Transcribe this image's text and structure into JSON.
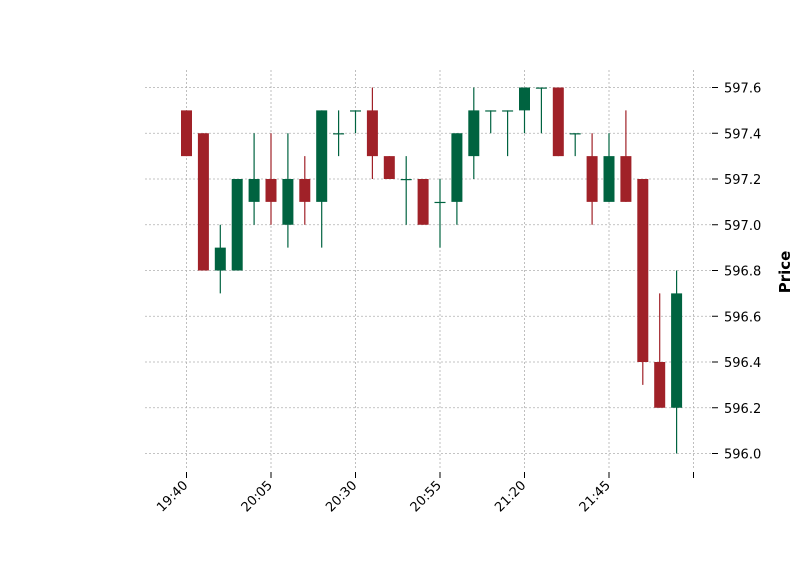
{
  "chart_data": {
    "type": "candlestick",
    "title": "",
    "xlabel": "",
    "ylabel": "Price",
    "ylim": [
      595.93,
      597.68
    ],
    "yticks": [
      596.0,
      596.2,
      596.4,
      596.6,
      596.8,
      597.0,
      597.2,
      597.4,
      597.6
    ],
    "ytick_labels": [
      "596.0",
      "596.2",
      "596.4",
      "596.6",
      "596.8",
      "597.0",
      "597.2",
      "597.4",
      "597.6"
    ],
    "xtick_index": [
      0,
      5,
      10,
      15,
      20,
      25,
      30
    ],
    "xtick_labels": [
      "19:40",
      "20:05",
      "20:30",
      "20:55",
      "21:20",
      "21:45",
      ""
    ],
    "grid": true,
    "up_color": "#006340",
    "down_color": "#a02128",
    "grid_color": "#b0b0b0",
    "candles": [
      {
        "time": "19:40",
        "open": 597.5,
        "high": 597.5,
        "low": 597.3,
        "close": 597.3
      },
      {
        "time": "19:45",
        "open": 597.4,
        "high": 597.4,
        "low": 596.8,
        "close": 596.8
      },
      {
        "time": "19:50",
        "open": 596.8,
        "high": 597.0,
        "low": 596.7,
        "close": 596.9
      },
      {
        "time": "19:55",
        "open": 596.8,
        "high": 597.2,
        "low": 596.8,
        "close": 597.2
      },
      {
        "time": "20:00",
        "open": 597.1,
        "high": 597.4,
        "low": 597.0,
        "close": 597.2
      },
      {
        "time": "20:05",
        "open": 597.2,
        "high": 597.4,
        "low": 597.0,
        "close": 597.1
      },
      {
        "time": "20:10",
        "open": 597.0,
        "high": 597.4,
        "low": 596.9,
        "close": 597.2
      },
      {
        "time": "20:15",
        "open": 597.2,
        "high": 597.3,
        "low": 597.0,
        "close": 597.1
      },
      {
        "time": "20:20",
        "open": 597.1,
        "high": 597.5,
        "low": 596.9,
        "close": 597.5
      },
      {
        "time": "20:25",
        "open": 597.4,
        "high": 597.5,
        "low": 597.3,
        "close": 597.4
      },
      {
        "time": "20:30",
        "open": 597.5,
        "high": 597.5,
        "low": 597.4,
        "close": 597.5
      },
      {
        "time": "20:35",
        "open": 597.5,
        "high": 597.6,
        "low": 597.2,
        "close": 597.3
      },
      {
        "time": "20:40",
        "open": 597.3,
        "high": 597.3,
        "low": 597.2,
        "close": 597.2
      },
      {
        "time": "20:45",
        "open": 597.2,
        "high": 597.3,
        "low": 597.0,
        "close": 597.2
      },
      {
        "time": "20:50",
        "open": 597.2,
        "high": 597.2,
        "low": 597.0,
        "close": 597.0
      },
      {
        "time": "20:55",
        "open": 597.1,
        "high": 597.2,
        "low": 596.9,
        "close": 597.1
      },
      {
        "time": "21:00",
        "open": 597.1,
        "high": 597.4,
        "low": 597.0,
        "close": 597.4
      },
      {
        "time": "21:05",
        "open": 597.3,
        "high": 597.6,
        "low": 597.2,
        "close": 597.5
      },
      {
        "time": "21:10",
        "open": 597.5,
        "high": 597.5,
        "low": 597.4,
        "close": 597.5
      },
      {
        "time": "21:15",
        "open": 597.5,
        "high": 597.5,
        "low": 597.3,
        "close": 597.5
      },
      {
        "time": "21:20",
        "open": 597.5,
        "high": 597.6,
        "low": 597.4,
        "close": 597.6
      },
      {
        "time": "21:25",
        "open": 597.6,
        "high": 597.6,
        "low": 597.4,
        "close": 597.6
      },
      {
        "time": "21:30",
        "open": 597.6,
        "high": 597.6,
        "low": 597.3,
        "close": 597.3
      },
      {
        "time": "21:35",
        "open": 597.4,
        "high": 597.4,
        "low": 597.3,
        "close": 597.4
      },
      {
        "time": "21:40",
        "open": 597.3,
        "high": 597.4,
        "low": 597.0,
        "close": 597.1
      },
      {
        "time": "21:45",
        "open": 597.1,
        "high": 597.4,
        "low": 597.1,
        "close": 597.3
      },
      {
        "time": "21:50",
        "open": 597.3,
        "high": 597.5,
        "low": 597.1,
        "close": 597.1
      },
      {
        "time": "21:55",
        "open": 597.2,
        "high": 597.2,
        "low": 596.3,
        "close": 596.4
      },
      {
        "time": "22:00",
        "open": 596.4,
        "high": 596.7,
        "low": 596.2,
        "close": 596.2
      },
      {
        "time": "22:05",
        "open": 596.2,
        "high": 596.8,
        "low": 596.0,
        "close": 596.7
      }
    ]
  }
}
